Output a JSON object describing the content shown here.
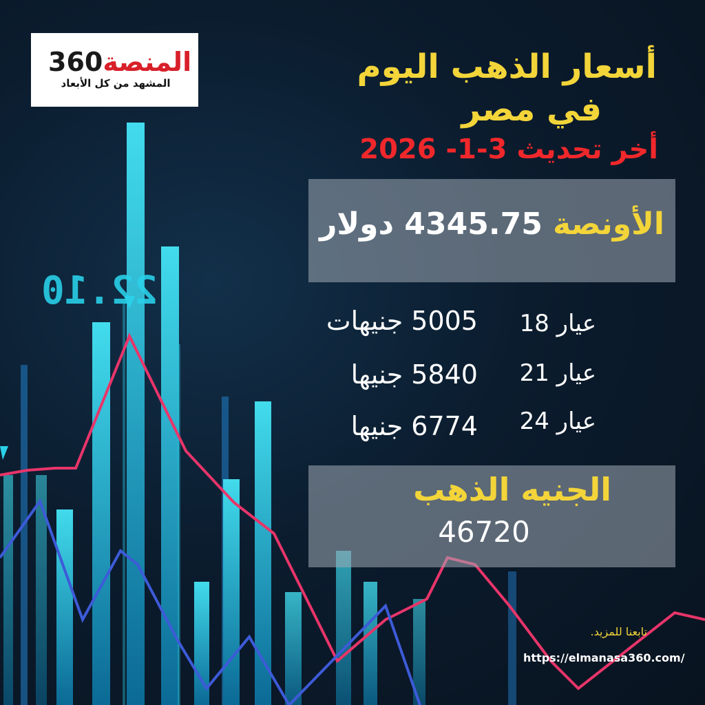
{
  "logo": {
    "brand_red": "المنصة",
    "brand_num": "360",
    "tagline": "المشهد من كل الأبعاد"
  },
  "title": {
    "line1": "أسعار الذهب اليوم",
    "line2": "في مصر",
    "update": "أخر تحديث 3-1- 2026"
  },
  "ounce": {
    "label": "الأونصة",
    "value": "4345.75 دولار"
  },
  "karats": [
    {
      "karat": "عيار 18",
      "price": "5005 جنيهات"
    },
    {
      "karat": "عيار 21",
      "price": "5840 جنيها"
    },
    {
      "karat": "عيار 24",
      "price": "6774 جنيها"
    }
  ],
  "gold_pound": {
    "label": "الجنيه الذهب",
    "value": "46720"
  },
  "footer": {
    "follow": "تابعنا للمزيد.",
    "url": "https://elmanasa360.com/"
  },
  "background_readout": "22.10",
  "colors": {
    "title_gold": "#f3d53a",
    "update_red": "#f0282b",
    "bar_cyan": "#2ad0e8",
    "line_pink": "#e8356a",
    "line_blue": "#3d5bd8"
  }
}
